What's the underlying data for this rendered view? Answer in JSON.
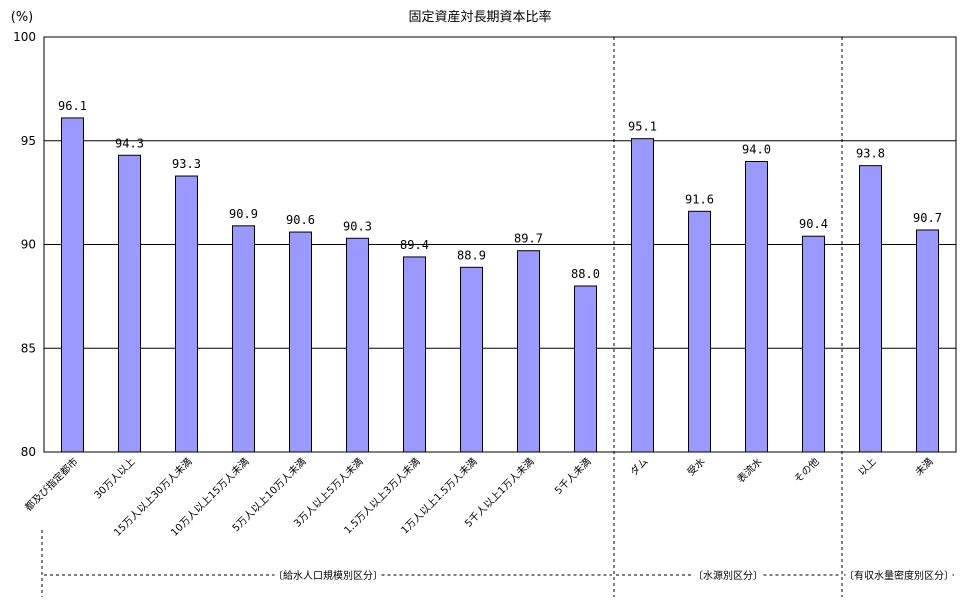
{
  "chart_data": {
    "type": "bar",
    "title": "固定資産対長期資本比率",
    "ylabel": "(%)",
    "ylim": [
      80,
      100
    ],
    "yticks": [
      80,
      85,
      90,
      95,
      100
    ],
    "grid": true,
    "bar_color": "#9999ff",
    "categories": [
      "都及び指定都市",
      "30万人以上",
      "15万人以上30万人未満",
      "10万人以上15万人未満",
      "5万人以上10万人未満",
      "3万人以上5万人未満",
      "1.5万人以上3万人未満",
      "1万人以上1.5万人未満",
      "5千人以上1万人未満",
      "5千人未満",
      "ダム",
      "受水",
      "表流水",
      "その他",
      "以上",
      "未満"
    ],
    "values": [
      96.1,
      94.3,
      93.3,
      90.9,
      90.6,
      90.3,
      89.4,
      88.9,
      89.7,
      88.0,
      95.1,
      91.6,
      94.0,
      90.4,
      93.8,
      90.7
    ],
    "data_labels": [
      "96.1",
      "94.3",
      "93.3",
      "90.9",
      "90.6",
      "90.3",
      "89.4",
      "88.9",
      "89.7",
      "88.0",
      "95.1",
      "91.6",
      "94.0",
      "90.4",
      "93.8",
      "90.7"
    ],
    "groups": [
      {
        "label": "〔給水人口規模別区分〕",
        "start": 0,
        "end": 9
      },
      {
        "label": "〔水源別区分〕",
        "start": 10,
        "end": 13
      },
      {
        "label": "〔有収水量密度別区分〕",
        "start": 14,
        "end": 15
      }
    ]
  }
}
